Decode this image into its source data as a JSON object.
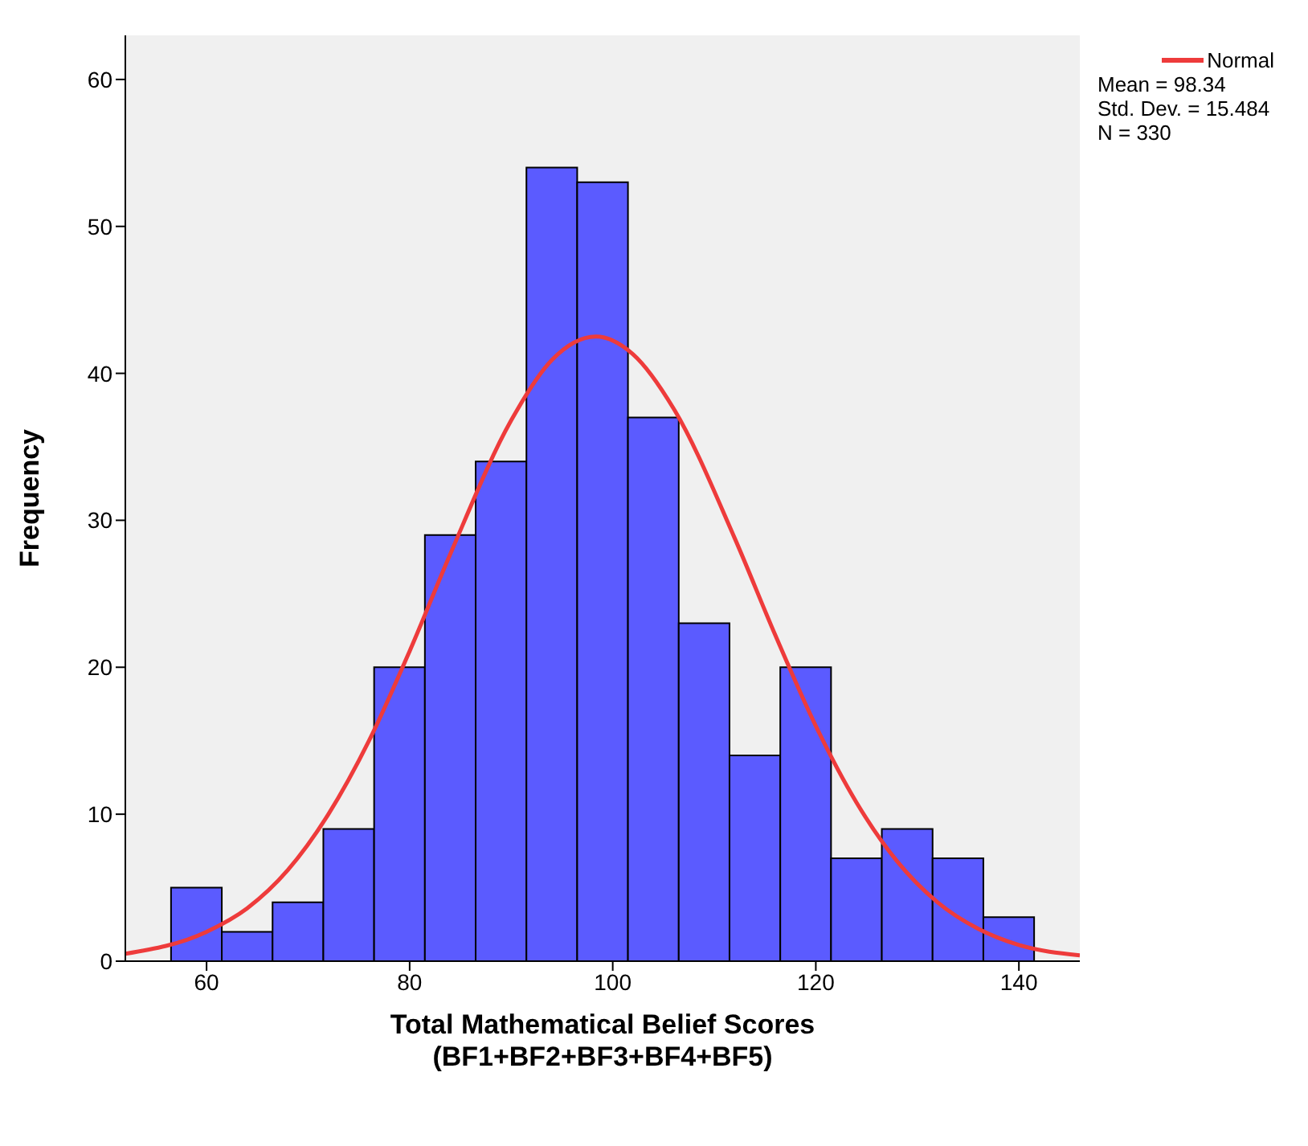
{
  "chart_data": {
    "type": "histogram",
    "xlabel": "Total Mathematical Belief Scores\n(BF1+BF2+BF3+BF4+BF5)",
    "ylabel": "Frequency",
    "bins": [
      56.5,
      61.5,
      66.5,
      71.5,
      76.5,
      81.5,
      86.5,
      91.5,
      96.5,
      101.5,
      106.5,
      111.5,
      116.5,
      121.5,
      126.5,
      131.5,
      136.5,
      141.5
    ],
    "series": [
      {
        "color": "#5b5bff",
        "values": [
          5,
          2,
          4,
          9,
          20,
          29,
          34,
          54,
          53,
          37,
          23,
          14,
          20,
          7,
          9,
          7,
          3
        ]
      },
      {
        "type": "line",
        "name": "Normal",
        "color": "#ee3b3b",
        "x": [
          52,
          60,
          64,
          68,
          72,
          76,
          80,
          84,
          90,
          94,
          98.34,
          102,
          106,
          112,
          116,
          120,
          124,
          128,
          132,
          136,
          140,
          146
        ],
        "values": [
          0.5,
          2,
          3.6,
          6.2,
          10,
          15,
          21.1,
          27.7,
          36.8,
          40.9,
          42.5,
          41.3,
          37.6,
          28.8,
          22.2,
          16,
          10.8,
          6.8,
          4,
          2.2,
          1.1,
          0.4
        ]
      }
    ],
    "xlim": [
      52,
      146
    ],
    "xticks": [
      60,
      80,
      100,
      120,
      140
    ],
    "ylim": [
      0,
      63
    ],
    "yticks": [
      0,
      10,
      20,
      30,
      40,
      50,
      60
    ],
    "legend": "top right",
    "annotations": [
      "Mean = 98.34",
      "Std. Dev. = 15.484",
      "N = 330"
    ]
  }
}
